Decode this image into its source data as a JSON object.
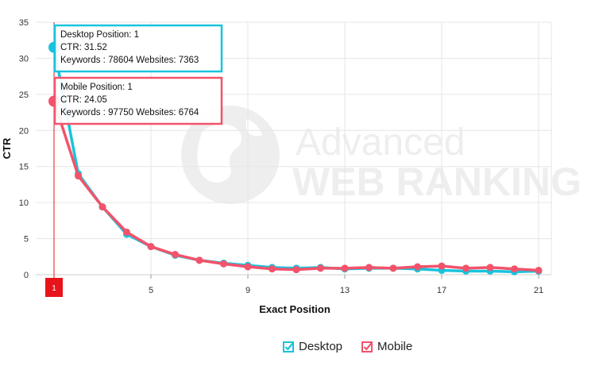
{
  "chart_data": {
    "type": "line",
    "xlabel": "Exact Position",
    "ylabel": "CTR",
    "xlim": [
      1,
      21
    ],
    "ylim": [
      0,
      35
    ],
    "x_ticks": [
      "5",
      "9",
      "13",
      "17",
      "21"
    ],
    "y_ticks": [
      "0",
      "5",
      "10",
      "15",
      "20",
      "25",
      "30",
      "35"
    ],
    "grid": true,
    "legend_placement": "bottom-center",
    "x": [
      1,
      2,
      3,
      4,
      5,
      6,
      7,
      8,
      9,
      10,
      11,
      12,
      13,
      14,
      15,
      16,
      17,
      18,
      19,
      20,
      21
    ],
    "series": [
      {
        "name": "Desktop",
        "color": "#19c3dc",
        "values": [
          31.52,
          14.0,
          9.4,
          5.6,
          3.9,
          2.7,
          2.0,
          1.6,
          1.3,
          1.0,
          0.9,
          1.0,
          0.8,
          0.9,
          0.9,
          0.8,
          0.6,
          0.5,
          0.5,
          0.4,
          0.5
        ]
      },
      {
        "name": "Mobile",
        "color": "#f2536b",
        "values": [
          24.05,
          13.7,
          9.4,
          5.9,
          3.9,
          2.8,
          2.0,
          1.5,
          1.1,
          0.8,
          0.7,
          0.9,
          0.9,
          1.0,
          0.9,
          1.1,
          1.2,
          0.9,
          1.0,
          0.8,
          0.6
        ]
      }
    ],
    "crosshair_label": "1",
    "crosshair_color": "#e8141b",
    "tooltips": [
      {
        "series": "Desktop",
        "line1": "Desktop Position: 1",
        "line2": "CTR: 31.52",
        "line3": "Keywords : 78604 Websites: 7363"
      },
      {
        "series": "Mobile",
        "line1": "Mobile Position: 1",
        "line2": "CTR: 24.05",
        "line3": "Keywords : 97750 Websites: 6764"
      }
    ],
    "watermark": "Advanced WEB RANKING"
  },
  "legend": {
    "items": [
      {
        "label": "Desktop",
        "color": "#19c3dc",
        "checked": true
      },
      {
        "label": "Mobile",
        "color": "#f2536b",
        "checked": true
      }
    ]
  }
}
